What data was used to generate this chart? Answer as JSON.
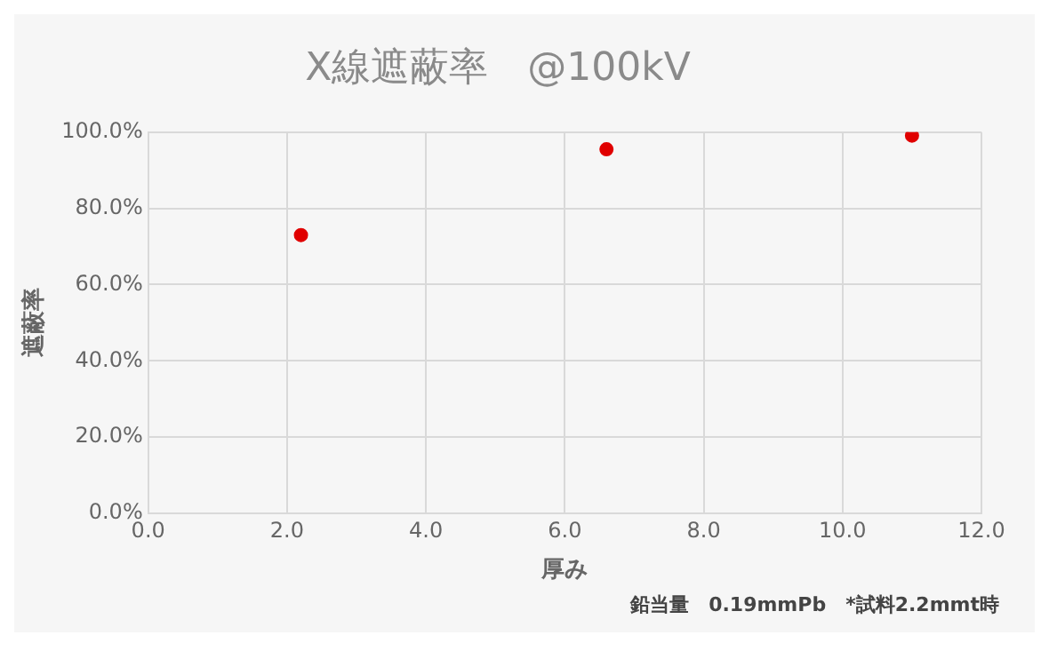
{
  "chart_data": {
    "type": "scatter",
    "title": "X線遮蔽率　@100kV",
    "xlabel": "厚み",
    "ylabel": "遮蔽率",
    "x": [
      2.2,
      6.6,
      11.0
    ],
    "series": [
      {
        "color": "#e00000",
        "values": [
          73.0,
          95.5,
          99.1
        ]
      }
    ],
    "xlim": [
      0,
      12
    ],
    "xticks": [
      {
        "value": 0,
        "label": "0.0"
      },
      {
        "value": 2,
        "label": "2.0"
      },
      {
        "value": 4,
        "label": "4.0"
      },
      {
        "value": 6,
        "label": "6.0"
      },
      {
        "value": 8,
        "label": "8.0"
      },
      {
        "value": 10,
        "label": "10.0"
      },
      {
        "value": 12,
        "label": "12.0"
      }
    ],
    "ylim": [
      0,
      100
    ],
    "yticks": [
      {
        "value": 0,
        "label": "0.0%"
      },
      {
        "value": 20,
        "label": "20.0%"
      },
      {
        "value": 40,
        "label": "40.0%"
      },
      {
        "value": 60,
        "label": "60.0%"
      },
      {
        "value": 80,
        "label": "80.0%"
      },
      {
        "value": 100,
        "label": "100.0%"
      }
    ],
    "grid": true,
    "legend": false,
    "marker": "circle",
    "annotations": [
      "鉛当量　0.19mmPb　*試料2.2mmt時"
    ]
  }
}
